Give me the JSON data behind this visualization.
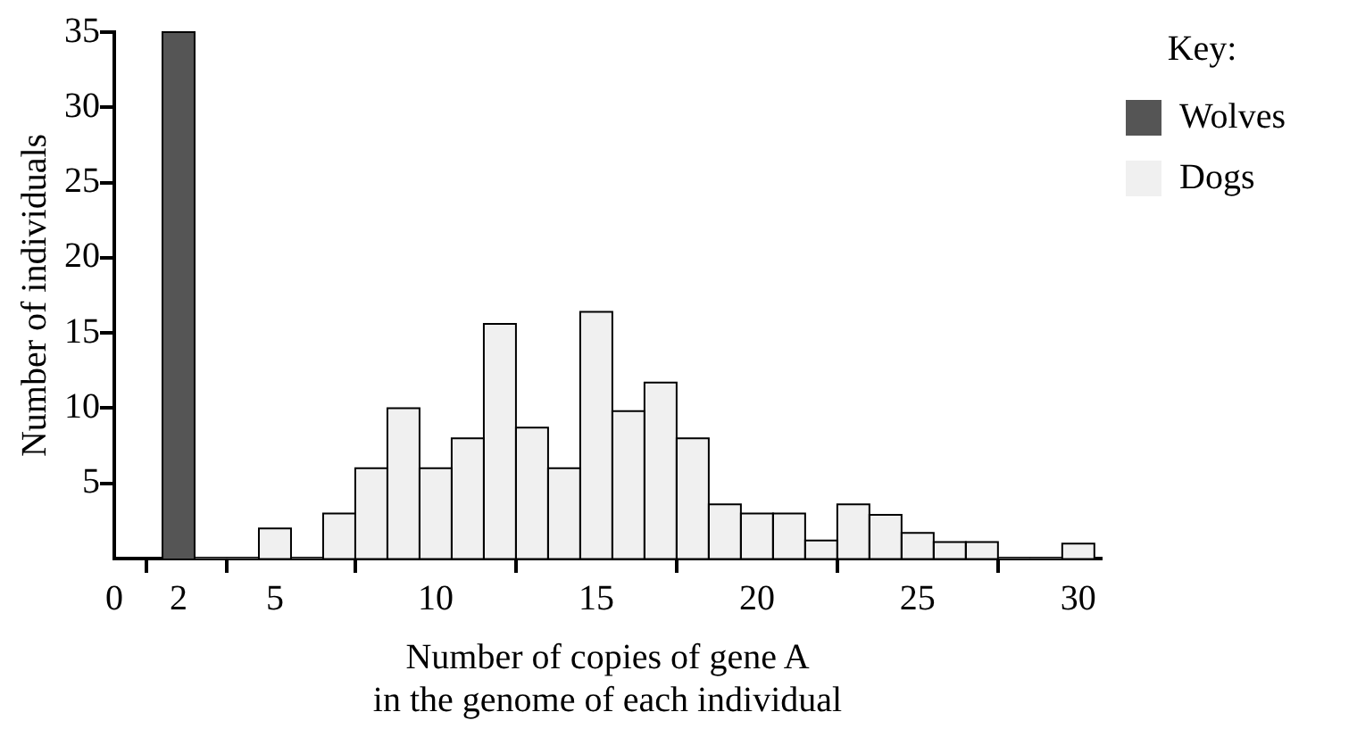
{
  "chart_data": {
    "type": "histogram",
    "xlabel": "Number of copies of gene A\nin the genome of each individual",
    "ylabel": "Number of individuals",
    "legend_title": "Key:",
    "legend": "top right",
    "bins": [
      1.5,
      2.5,
      3.5,
      4.5,
      5.5,
      6.5,
      7.5,
      8.5,
      9.5,
      10.5,
      11.5,
      12.5,
      13.5,
      14.5,
      15.5,
      16.5,
      17.5,
      18.5,
      19.5,
      20.5,
      21.5,
      22.5,
      23.5,
      24.5,
      25.5,
      26.5,
      27.5,
      28.5,
      29.5,
      30.5
    ],
    "series": [
      {
        "name": "Wolves",
        "color": "#555555",
        "values": [
          35,
          0,
          0,
          0,
          0,
          0,
          0,
          0,
          0,
          0,
          0,
          0,
          0,
          0,
          0,
          0,
          0,
          0,
          0,
          0,
          0,
          0,
          0,
          0,
          0,
          0,
          0,
          0,
          0
        ]
      },
      {
        "name": "Dogs",
        "color": "#f0f0f0",
        "values": [
          0,
          0,
          0,
          2,
          0,
          3,
          6,
          10,
          6,
          8,
          15.6,
          8.7,
          6,
          16.4,
          9.8,
          11.7,
          8,
          3.6,
          3,
          3,
          1.2,
          3.6,
          2.9,
          1.7,
          1.1,
          1.1,
          0,
          0,
          1
        ]
      }
    ],
    "xlim": [
      0,
      30.7
    ],
    "xticks": [
      0,
      2,
      5,
      10,
      15,
      20,
      25,
      30
    ],
    "ylim": [
      0,
      35
    ],
    "yticks": [
      5,
      10,
      15,
      20,
      25,
      30,
      35
    ],
    "grid": false
  }
}
